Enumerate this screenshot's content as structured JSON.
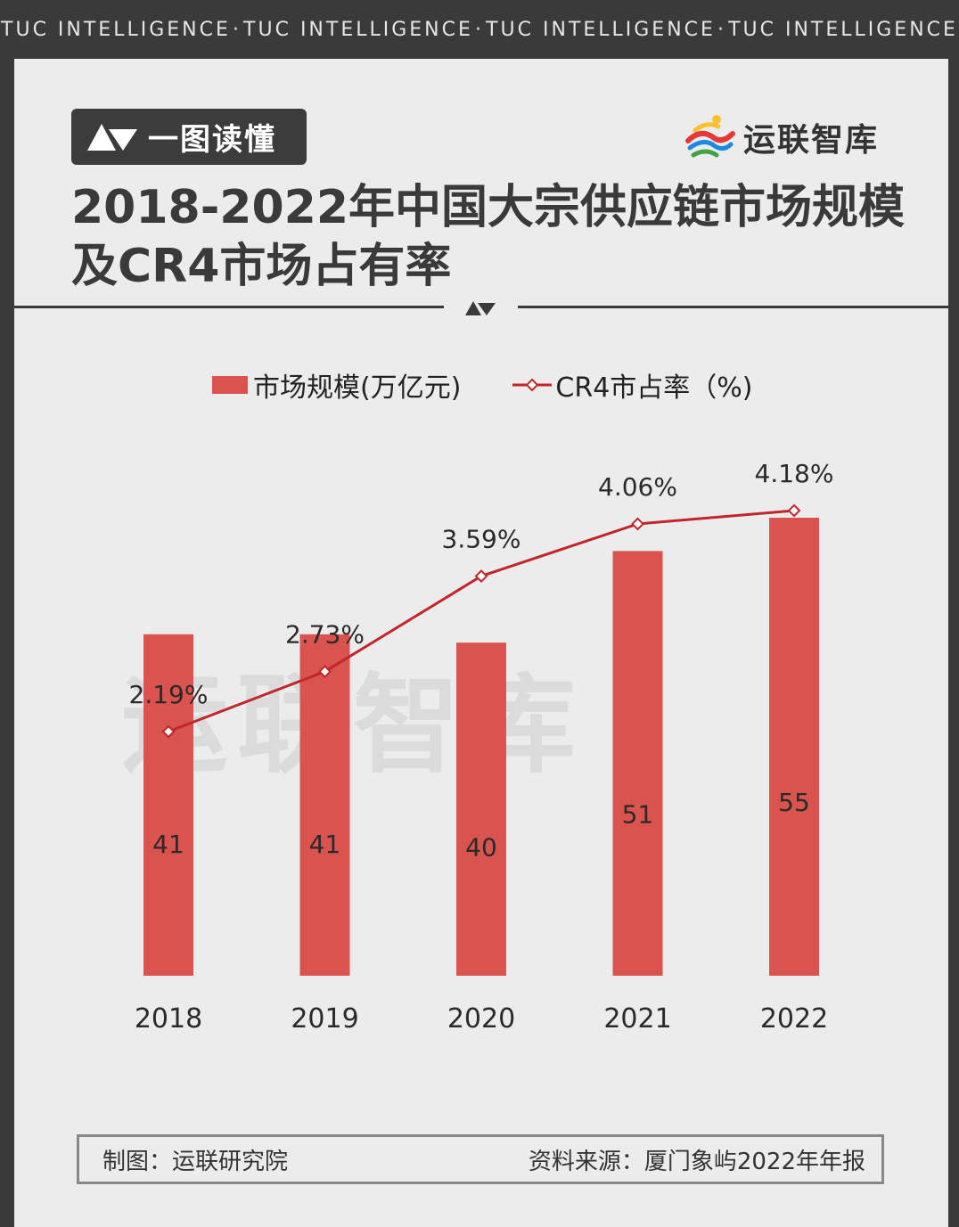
{
  "banner": {
    "items": [
      "TUC INTELLIGENCE",
      "·",
      "TUC INTELLIGENCE",
      "·",
      "TUC INTELLIGENCE",
      "·",
      "TUC INTELLIGENCE"
    ]
  },
  "header": {
    "tag_label": "一图读懂",
    "brand_name": "运联智库",
    "title_line1": "2018-2022年中国大宗供应链市场规模",
    "title_line2": "及CR4市场占有率"
  },
  "watermark": "运联智库",
  "chart_data": {
    "type": "bar",
    "categories": [
      "2018",
      "2019",
      "2020",
      "2021",
      "2022"
    ],
    "series": [
      {
        "name": "市场规模(万亿元)",
        "type": "bar",
        "values": [
          41,
          41,
          40,
          51,
          55
        ],
        "labels": [
          "41",
          "41",
          "40",
          "51",
          "55"
        ],
        "color": "#d9534f"
      },
      {
        "name": "CR4市占率（%)",
        "type": "line",
        "values": [
          2.19,
          2.73,
          3.59,
          4.06,
          4.18
        ],
        "labels": [
          "2.19%",
          "2.73%",
          "3.59%",
          "4.06%",
          "4.18%"
        ],
        "color": "#c0262a"
      }
    ],
    "legend_position": "top"
  },
  "footer": {
    "left": "制图：运联研究院",
    "right": "资料来源：厦门象屿2022年年报"
  }
}
